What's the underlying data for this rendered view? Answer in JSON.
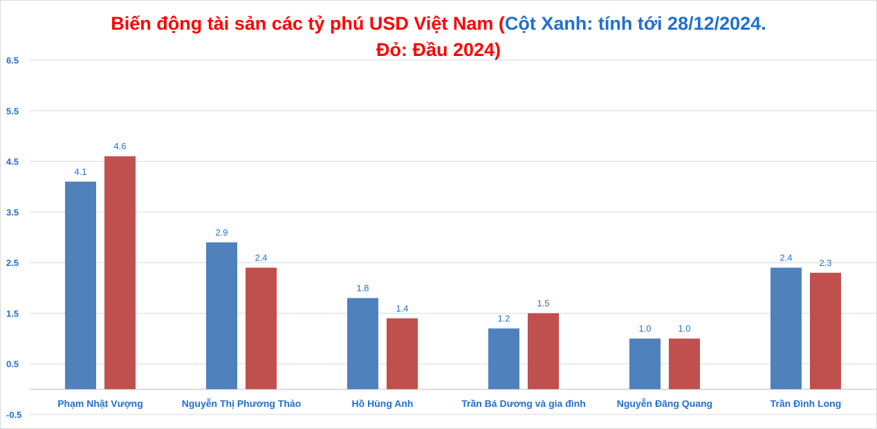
{
  "chart_data": {
    "type": "bar",
    "title": {
      "part1": "Biến động tài sản các tỷ phú USD Việt Nam (",
      "part2": "Cột Xanh: tính tới 28/12/2024.",
      "part3": "Đỏ: Đầu 2024)"
    },
    "categories": [
      "Phạm Nhật Vượng",
      "Nguyễn Thị Phương Thảo",
      "Hồ Hùng Anh",
      "Trần Bá Dương và gia đình",
      "Nguyễn Đăng Quang",
      "Trần Đình Long"
    ],
    "series": [
      {
        "name": "Tính tới 28/12/2024",
        "color": "#4f81bd",
        "values": [
          4.1,
          2.9,
          1.8,
          1.2,
          1.0,
          2.4
        ]
      },
      {
        "name": "Đầu 2024",
        "color": "#c0504d",
        "values": [
          4.6,
          2.4,
          1.4,
          1.5,
          1.0,
          2.3
        ]
      }
    ],
    "data_labels": [
      [
        "4.1",
        "2.9",
        "1.8",
        "1.2",
        "1.0",
        "2.4"
      ],
      [
        "4.6",
        "2.4",
        "1.4",
        "1.5",
        "1.0",
        "2.3"
      ]
    ],
    "yticks": [
      "-0.5",
      "0.5",
      "1.5",
      "2.5",
      "3.5",
      "4.5",
      "5.5",
      "6.5"
    ],
    "ylim": [
      -0.5,
      6.5
    ],
    "xlabel": "",
    "ylabel": "",
    "grid": true,
    "label_color": "#1f6fd1"
  }
}
